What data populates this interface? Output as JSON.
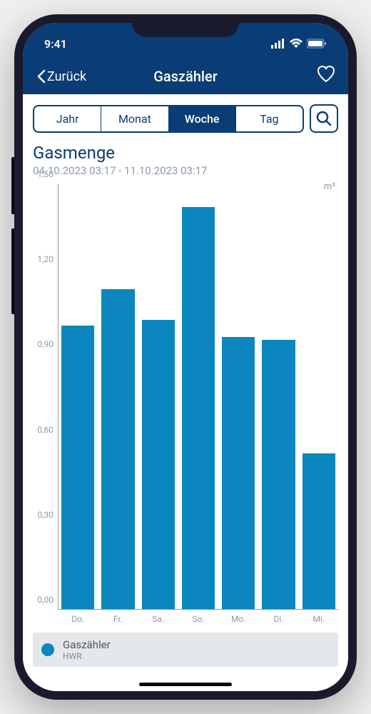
{
  "status": {
    "time": "9:41"
  },
  "nav": {
    "back_label": "Zurück",
    "title": "Gaszähler"
  },
  "tabs": {
    "items": [
      "Jahr",
      "Monat",
      "Woche",
      "Tag"
    ],
    "active_index": 2
  },
  "chart": {
    "type": "bar",
    "title": "Gasmenge",
    "range": "04.10.2023 03:17 - 11.10.2023 03:17",
    "unit": "m³",
    "y_ticks": [
      "0,00",
      "0,30",
      "0,60",
      "0,90",
      "1,20",
      "1,50"
    ],
    "y_max": 1.5,
    "categories": [
      "Do.",
      "Fr.",
      "Sa.",
      "So.",
      "Mo.",
      "Di.",
      "Mi."
    ],
    "values": [
      1.0,
      1.13,
      1.02,
      1.42,
      0.96,
      0.95,
      0.55
    ],
    "bar_color": "#0b86bf",
    "axis_color": "#999999",
    "label_color": "#8a9aaa",
    "title_color": "#0a3d75",
    "background": "#ffffff"
  },
  "legend": {
    "title": "Gaszähler",
    "subtitle": "HWR",
    "swatch_color": "#0b86bf",
    "bg": "#e4e8eb"
  },
  "theme": {
    "primary": "#0a3d75"
  }
}
